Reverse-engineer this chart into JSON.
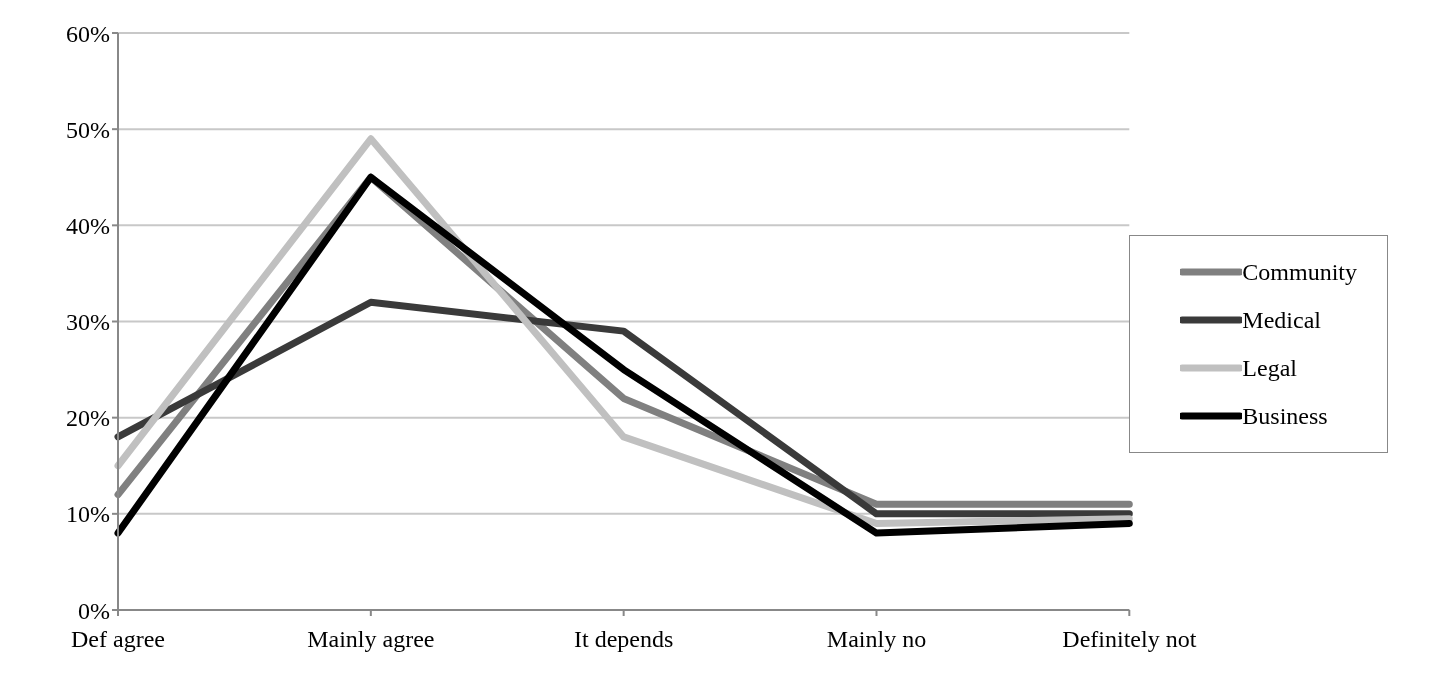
{
  "chart_data": {
    "type": "line",
    "categories": [
      "Def agree",
      "Mainly agree",
      "It depends",
      "Mainly no",
      "Definitely not"
    ],
    "series": [
      {
        "name": "Community",
        "color": "#808080",
        "values": [
          12,
          45,
          22,
          11,
          11
        ]
      },
      {
        "name": "Medical",
        "color": "#3a3a3a",
        "values": [
          18,
          32,
          29,
          10,
          10
        ]
      },
      {
        "name": "Legal",
        "color": "#c0c0c0",
        "values": [
          15,
          49,
          18,
          9,
          9.5
        ]
      },
      {
        "name": "Business",
        "color": "#000000",
        "values": [
          8,
          45,
          25,
          8,
          9
        ]
      }
    ],
    "ylim": [
      0,
      60
    ],
    "yticks": [
      {
        "value": 0,
        "label": "0%"
      },
      {
        "value": 10,
        "label": "10%"
      },
      {
        "value": 20,
        "label": "20%"
      },
      {
        "value": 30,
        "label": "30%"
      },
      {
        "value": 40,
        "label": "40%"
      },
      {
        "value": 50,
        "label": "50%"
      },
      {
        "value": 60,
        "label": "60%"
      }
    ],
    "grid": "y",
    "legend": "right",
    "marker": "none",
    "line_style": "solid"
  }
}
